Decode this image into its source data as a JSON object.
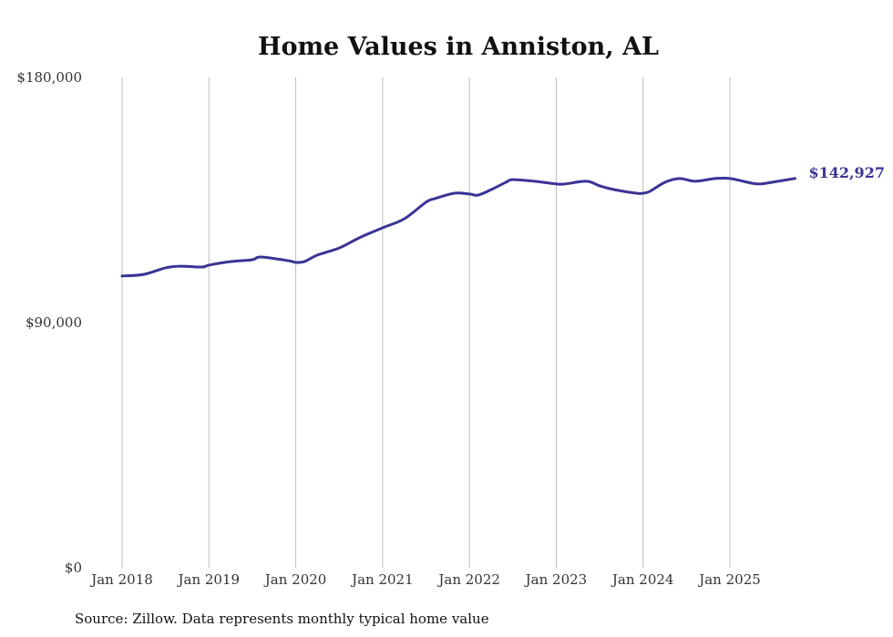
{
  "chart_data": {
    "type": "line",
    "title": "Home Values in Anniston, AL",
    "xlabel": "",
    "ylabel": "",
    "ylim": [
      0,
      180000
    ],
    "xlim": [
      2018.0,
      2025.75
    ],
    "y_ticks": [
      0,
      90000,
      180000
    ],
    "y_tick_labels": [
      "$0",
      "$90,000",
      "$180,000"
    ],
    "x_ticks": [
      2018,
      2019,
      2020,
      2021,
      2022,
      2023,
      2024,
      2025
    ],
    "x_tick_labels": [
      "Jan 2018",
      "Jan 2019",
      "Jan 2020",
      "Jan 2021",
      "Jan 2022",
      "Jan 2023",
      "Jan 2024",
      "Jan 2025"
    ],
    "grid": "vertical",
    "series": [
      {
        "name": "Typical home value",
        "color": "#3a3495",
        "x": [
          2018.0,
          2018.25,
          2018.5,
          2018.67,
          2018.92,
          2019.0,
          2019.25,
          2019.5,
          2019.6,
          2019.92,
          2020.0,
          2020.1,
          2020.25,
          2020.5,
          2020.75,
          2021.0,
          2021.25,
          2021.5,
          2021.6,
          2021.83,
          2022.0,
          2022.1,
          2022.25,
          2022.42,
          2022.5,
          2022.75,
          2023.0,
          2023.1,
          2023.35,
          2023.5,
          2023.67,
          2023.92,
          2024.0,
          2024.08,
          2024.25,
          2024.42,
          2024.6,
          2024.83,
          2025.0,
          2025.25,
          2025.35,
          2025.5,
          2025.75
        ],
        "values": [
          107100,
          107700,
          110100,
          110700,
          110400,
          111100,
          112400,
          113100,
          114100,
          112700,
          112100,
          112400,
          114800,
          117400,
          121400,
          124800,
          128100,
          134200,
          135500,
          137500,
          137200,
          136800,
          138800,
          141500,
          142500,
          141900,
          140900,
          140900,
          141900,
          140200,
          138800,
          137500,
          137500,
          138200,
          141500,
          142900,
          141900,
          142900,
          142900,
          141200,
          140900,
          141600,
          142927
        ]
      }
    ],
    "annotations": [
      {
        "text": "$142,927",
        "x": 2025.75,
        "y": 142927
      }
    ],
    "source": "Source: Zillow. Data represents monthly typical home value"
  }
}
